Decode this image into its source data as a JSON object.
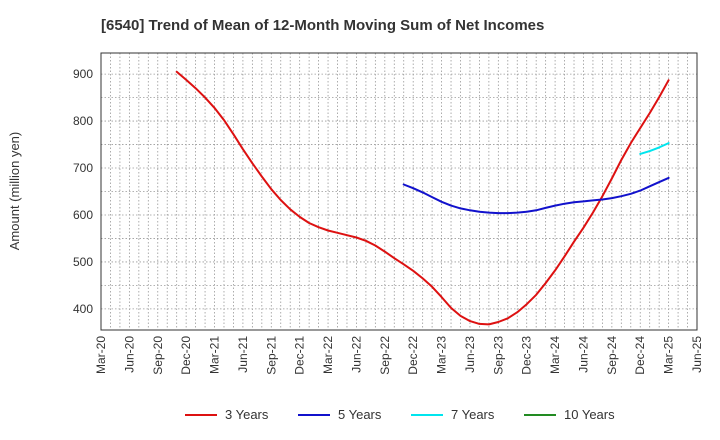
{
  "chart_data": {
    "type": "line",
    "title": "[6540]  Trend of Mean of 12-Month Moving Sum of Net Incomes",
    "ylabel": "Amount (million yen)",
    "xlabel": "",
    "x_ticks": [
      "Mar-20",
      "Jun-20",
      "Sep-20",
      "Dec-20",
      "Mar-21",
      "Jun-21",
      "Sep-21",
      "Dec-21",
      "Mar-22",
      "Jun-22",
      "Sep-22",
      "Dec-22",
      "Mar-23",
      "Jun-23",
      "Sep-23",
      "Dec-23",
      "Mar-24",
      "Jun-24",
      "Sep-24",
      "Dec-24",
      "Mar-25",
      "Jun-25"
    ],
    "y_ticks": [
      400,
      500,
      600,
      700,
      800,
      900
    ],
    "xlim": [
      "2020-03",
      "2025-06"
    ],
    "ylim": [
      355,
      945
    ],
    "grid": true,
    "legend_position": "bottom",
    "series": [
      {
        "name": "3 Years",
        "color": "#dd1111",
        "x": [
          "2020-11",
          "2020-12",
          "2021-01",
          "2021-02",
          "2021-03",
          "2021-04",
          "2021-05",
          "2021-06",
          "2021-07",
          "2021-08",
          "2021-09",
          "2021-10",
          "2021-11",
          "2021-12",
          "2022-01",
          "2022-02",
          "2022-03",
          "2022-04",
          "2022-05",
          "2022-06",
          "2022-07",
          "2022-08",
          "2022-09",
          "2022-10",
          "2022-11",
          "2022-12",
          "2023-01",
          "2023-02",
          "2023-03",
          "2023-04",
          "2023-05",
          "2023-06",
          "2023-07",
          "2023-08",
          "2023-09",
          "2023-10",
          "2023-11",
          "2023-12",
          "2024-01",
          "2024-02",
          "2024-03",
          "2024-04",
          "2024-05",
          "2024-06",
          "2024-07",
          "2024-08",
          "2024-09",
          "2024-10",
          "2024-11",
          "2024-12",
          "2025-01",
          "2025-02",
          "2025-03"
        ],
        "y": [
          905,
          888,
          870,
          850,
          828,
          802,
          772,
          740,
          710,
          682,
          655,
          632,
          612,
          596,
          583,
          574,
          567,
          562,
          557,
          552,
          545,
          535,
          522,
          508,
          495,
          481,
          465,
          447,
          425,
          402,
          385,
          374,
          368,
          367,
          372,
          380,
          393,
          410,
          430,
          455,
          482,
          512,
          543,
          573,
          605,
          640,
          678,
          717,
          753,
          785,
          817,
          851,
          887
        ]
      },
      {
        "name": "5 Years",
        "color": "#1111cc",
        "x": [
          "2022-11",
          "2022-12",
          "2023-01",
          "2023-02",
          "2023-03",
          "2023-04",
          "2023-05",
          "2023-06",
          "2023-07",
          "2023-08",
          "2023-09",
          "2023-10",
          "2023-11",
          "2023-12",
          "2024-01",
          "2024-02",
          "2024-03",
          "2024-04",
          "2024-05",
          "2024-06",
          "2024-07",
          "2024-08",
          "2024-09",
          "2024-10",
          "2024-11",
          "2024-12",
          "2025-01",
          "2025-02",
          "2025-03"
        ],
        "y": [
          665,
          657,
          648,
          638,
          628,
          620,
          614,
          610,
          607,
          605,
          604,
          604,
          605,
          607,
          610,
          615,
          620,
          624,
          627,
          629,
          631,
          633,
          636,
          640,
          645,
          652,
          661,
          670,
          679
        ]
      },
      {
        "name": "7 Years",
        "color": "#00e5ee",
        "x": [
          "2024-12",
          "2025-01",
          "2025-02",
          "2025-03"
        ],
        "y": [
          730,
          736,
          744,
          753
        ]
      },
      {
        "name": "10 Years",
        "color": "#228b22",
        "x": [],
        "y": []
      }
    ]
  }
}
